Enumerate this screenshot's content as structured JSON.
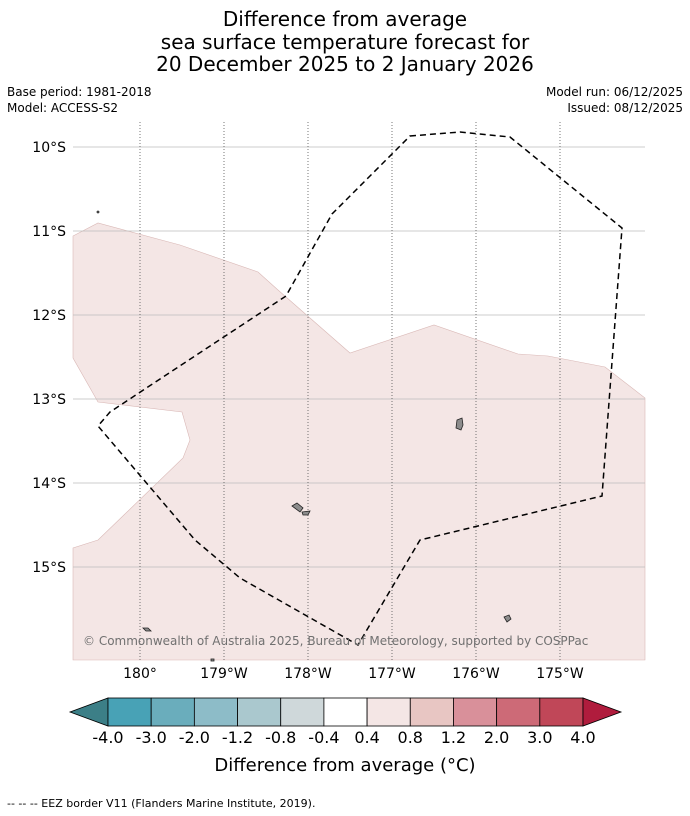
{
  "header": {
    "title_lines": [
      "Difference from average",
      "sea surface temperature forecast for",
      "20 December 2025 to 2 January 2026"
    ],
    "base_period": "Base period: 1981-2018",
    "model": "Model: ACCESS-S2",
    "model_run": "Model run: 06/12/2025",
    "issued": "Issued: 08/12/2025"
  },
  "map": {
    "lat_labels": [
      "10°S",
      "11°S",
      "12°S",
      "13°S",
      "14°S",
      "15°S"
    ],
    "lon_labels": [
      "180°",
      "179°W",
      "178°W",
      "177°W",
      "176°W",
      "175°W"
    ],
    "copyright": "© Commonwealth of Australia 2025, Bureau of Meteorology, supported by COSPPac",
    "anomaly_fill_color": "#f4e6e5",
    "anomaly_class": "0.4 to 0.8"
  },
  "colorbar": {
    "tick_labels": [
      "-4.0",
      "-3.0",
      "-2.0",
      "-1.2",
      "-0.8",
      "-0.4",
      "0.4",
      "0.8",
      "1.2",
      "2.0",
      "3.0",
      "4.0"
    ],
    "colors": [
      "#3c7f87",
      "#48a2b6",
      "#6aadbc",
      "#8dbcc8",
      "#aac8ce",
      "#cfd8da",
      "#ffffff",
      "#f4e6e5",
      "#e8c6c3",
      "#d9909a",
      "#cd6a77",
      "#c04758",
      "#b01c3d"
    ],
    "label": "Difference from average (°C)"
  },
  "footnote": "--  --  -- EEZ border V11 (Flanders Marine Institute, 2019)."
}
